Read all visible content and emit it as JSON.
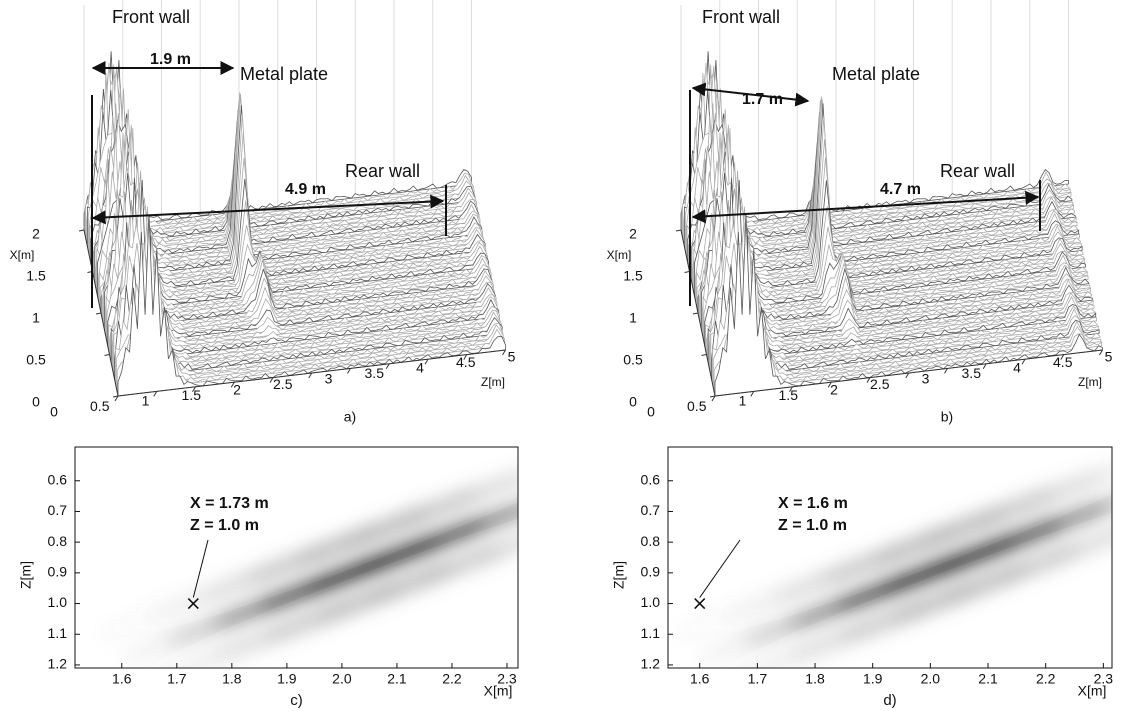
{
  "chart_data": [
    {
      "type": "surface3d",
      "caption": "a)",
      "x_label": "X[m]",
      "z_label": "Z[m]",
      "xticks": [
        0,
        0.5,
        1,
        1.5,
        2
      ],
      "zticks": [
        0,
        0.5,
        1,
        1.5,
        2,
        2.5,
        3,
        3.5,
        4,
        4.5,
        5
      ],
      "annotations": [
        "Front wall",
        "Metal plate",
        "Rear wall",
        "1.9 m",
        "4.9 m"
      ]
    },
    {
      "type": "surface3d",
      "caption": "b)",
      "x_label": "X[m]",
      "z_label": "Z[m]",
      "xticks": [
        0,
        0.5,
        1,
        1.5,
        2
      ],
      "zticks": [
        0,
        0.5,
        1,
        1.5,
        2,
        2.5,
        3,
        3.5,
        4,
        4.5,
        5
      ],
      "annotations": [
        "Front wall",
        "Metal plate",
        "Rear wall",
        "1.7 m",
        "4.7 m"
      ]
    },
    {
      "type": "heatmap",
      "caption": "c)",
      "x_label": "X[m]",
      "y_label": "Z[m]",
      "xlim": [
        1.515,
        2.32
      ],
      "ylim": [
        0.49,
        1.21
      ],
      "y_reversed": true,
      "xticks": [
        1.6,
        1.7,
        1.8,
        1.9,
        {
          "value": 2,
          "label": "2.0"
        },
        2.1,
        2.2,
        2.3
      ],
      "yticks": [
        0.6,
        0.7,
        0.8,
        0.9,
        {
          "value": 1,
          "label": "1.0"
        },
        1.1,
        1.2
      ],
      "point": {
        "x": 1.73,
        "y": 1.0
      },
      "annotations": [
        "X = 1.73 m",
        "Z = 1.0 m"
      ]
    },
    {
      "type": "heatmap",
      "caption": "d)",
      "x_label": "X[m]",
      "y_label": "Z[m]",
      "xlim": [
        1.545,
        2.315
      ],
      "ylim": [
        0.49,
        1.21
      ],
      "y_reversed": true,
      "xticks": [
        1.6,
        1.7,
        1.8,
        1.9,
        {
          "value": 2,
          "label": "2.0"
        },
        2.1,
        2.2,
        2.3
      ],
      "yticks": [
        0.6,
        0.7,
        0.8,
        0.9,
        {
          "value": 1,
          "label": "1.0"
        },
        1.1,
        1.2
      ],
      "point": {
        "x": 1.6,
        "y": 1.0
      },
      "annotations": [
        "X = 1.6 m",
        "Z = 1.0 m"
      ]
    }
  ]
}
